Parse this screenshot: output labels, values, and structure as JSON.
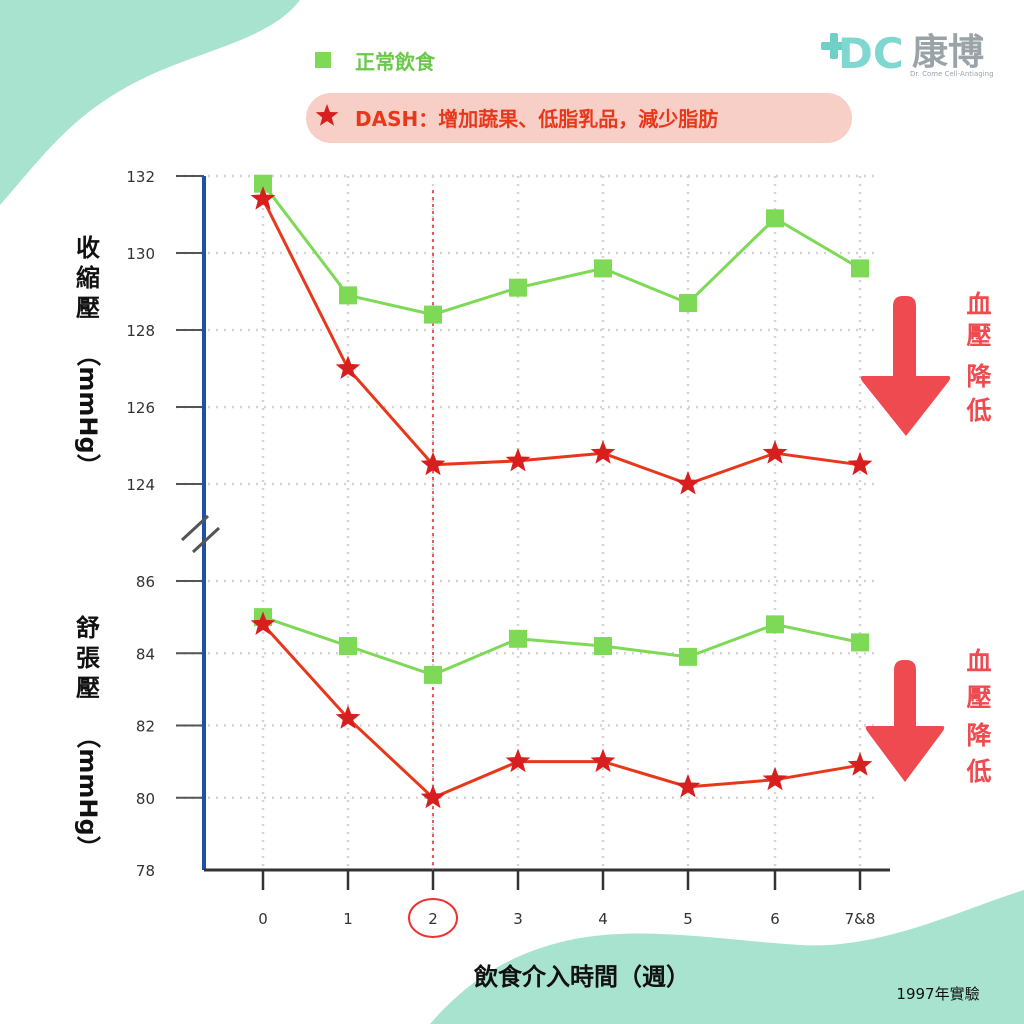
{
  "legend": {
    "normal_label": "正常飲食",
    "dash_label": "DASH：增加蔬果、低脂乳品，減少脂肪"
  },
  "brand": {
    "mark": "DC",
    "name": "康博",
    "tagline": "Dr. Come Cell-Antiaging"
  },
  "annotations": {
    "drop_top": [
      "血",
      "壓",
      "降",
      "低"
    ],
    "drop_bottom": [
      "血",
      "壓",
      "降",
      "低"
    ],
    "year_note": "1997年實驗"
  },
  "colors": {
    "normal": "#7ed957",
    "dash": "#e8381c",
    "star": "#d81f1f",
    "axis": "#1f4fa8",
    "arrow": "#ef4a4f",
    "mint": "#a8e3cf",
    "highlight_week": "#e33"
  },
  "chart_data": [
    {
      "type": "line",
      "ylabel": "收縮壓 (mmHg)",
      "ylabel_chars": [
        "收",
        "縮",
        "壓"
      ],
      "ylabel_unit": "（mmHg）",
      "yticks": [
        124,
        126,
        128,
        130,
        132
      ],
      "ylim": [
        123.8,
        132.2
      ],
      "categories": [
        "0",
        "1",
        "2",
        "3",
        "4",
        "5",
        "6",
        "7&8"
      ],
      "series": [
        {
          "name": "正常飲食",
          "marker": "square",
          "values": [
            131.8,
            128.9,
            128.4,
            129.1,
            129.6,
            128.7,
            130.9,
            129.6
          ]
        },
        {
          "name": "DASH：增加蔬果、低脂乳品，減少脂肪",
          "marker": "star",
          "values": [
            131.4,
            127.0,
            124.5,
            124.6,
            124.8,
            124.0,
            124.8,
            124.5
          ]
        }
      ],
      "grid": true
    },
    {
      "type": "line",
      "ylabel": "舒張壓 (mmHg)",
      "ylabel_chars": [
        "舒",
        "張",
        "壓"
      ],
      "ylabel_unit": "（mmHg）",
      "yticks": [
        78,
        80,
        82,
        84,
        86
      ],
      "ylim": [
        78,
        86
      ],
      "xlabel": "飲食介入時間（週）",
      "categories": [
        "0",
        "1",
        "2",
        "3",
        "4",
        "5",
        "6",
        "7&8"
      ],
      "highlight_category": "2",
      "series": [
        {
          "name": "正常飲食",
          "marker": "square",
          "values": [
            85.0,
            84.2,
            83.4,
            84.4,
            84.2,
            83.9,
            84.8,
            84.3
          ]
        },
        {
          "name": "DASH：增加蔬果、低脂乳品，減少脂肪",
          "marker": "star",
          "values": [
            84.8,
            82.2,
            80.0,
            81.0,
            81.0,
            80.3,
            80.5,
            80.9
          ]
        }
      ],
      "grid": true
    }
  ]
}
